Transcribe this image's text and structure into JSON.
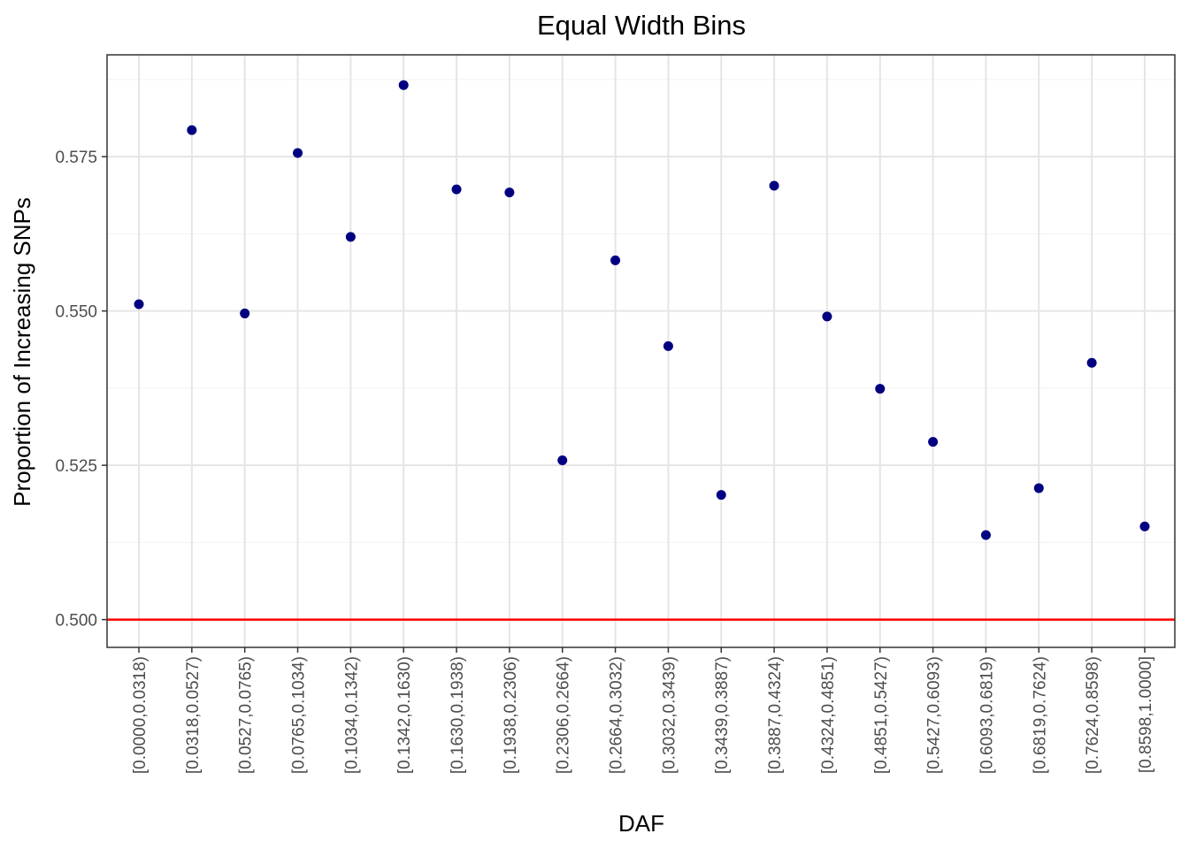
{
  "chart_data": {
    "type": "scatter",
    "title": "Equal Width Bins",
    "xlabel": "DAF",
    "ylabel": "Proportion of Increasing SNPs",
    "ylim": [
      0.4955,
      0.5915
    ],
    "yticks": [
      "0.500",
      "0.525",
      "0.550",
      "0.575"
    ],
    "ytick_values": [
      0.5,
      0.525,
      0.55,
      0.575
    ],
    "ygrid_minor": [
      0.5125,
      0.5375,
      0.5625,
      0.5875
    ],
    "grid": true,
    "legend": "none",
    "point_color": "#000080",
    "reference_line": {
      "y": 0.5,
      "color": "#ff0000"
    },
    "categories": [
      "[0.0000,0.0318)",
      "[0.0318,0.0527)",
      "[0.0527,0.0765)",
      "[0.0765,0.1034)",
      "[0.1034,0.1342)",
      "[0.1342,0.1630)",
      "[0.1630,0.1938)",
      "[0.1938,0.2306)",
      "[0.2306,0.2664)",
      "[0.2664,0.3032)",
      "[0.3032,0.3439)",
      "[0.3439,0.3887)",
      "[0.3887,0.4324)",
      "[0.4324,0.4851)",
      "[0.4851,0.5427)",
      "[0.5427,0.6093)",
      "[0.6093,0.6819)",
      "[0.6819,0.7624)",
      "[0.7624,0.8598)",
      "[0.8598,1.0000]"
    ],
    "values": [
      0.5511,
      0.5793,
      0.5496,
      0.5756,
      0.562,
      0.5866,
      0.5697,
      0.5692,
      0.5258,
      0.5582,
      0.5443,
      0.5202,
      0.5703,
      0.5491,
      0.5374,
      0.5288,
      0.5137,
      0.5213,
      0.5416,
      0.5151
    ]
  }
}
